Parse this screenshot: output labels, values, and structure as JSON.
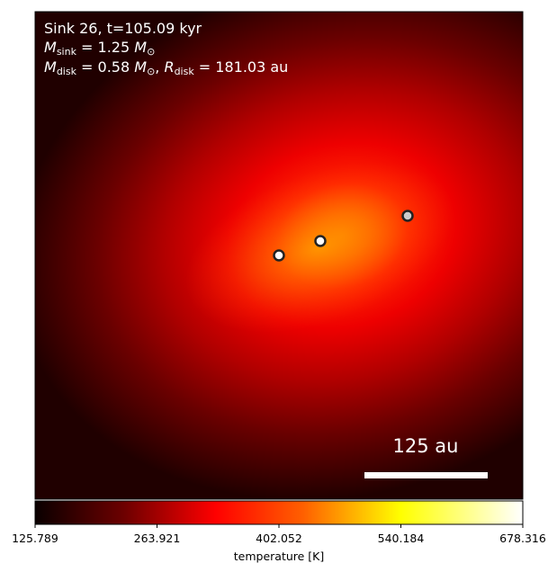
{
  "figure": {
    "info_lines": [
      {
        "id": "line1",
        "text": "Sink 26, t=105.09 kyr"
      },
      {
        "id": "line2",
        "text": "M_sink = 1.25 M_⊙"
      },
      {
        "id": "line3",
        "text": "M_disk = 0.58 M_⊙, R_disk = 181.03 au"
      }
    ],
    "scale_bar_label": "125 au",
    "colorbar": {
      "label": "temperature [K]",
      "ticks": [
        "125.789",
        "263.921",
        "402.052",
        "540.184",
        "678.316"
      ],
      "min": 125.789,
      "max": 678.316,
      "colormap": "hot"
    }
  },
  "chart_data": {
    "type": "heatmap",
    "title": "Sink 26, t=105.09 kyr",
    "annotations": [
      "M_sink = 1.25 M_⊙",
      "M_disk = 0.58 M_⊙, R_disk = 181.03 au",
      "125 au"
    ],
    "colorbar_label": "temperature [K]",
    "colorbar_ticks": [
      125.789,
      263.921,
      402.052,
      540.184,
      678.316
    ],
    "value_range": [
      125.789,
      678.316
    ],
    "sinks_count": 3,
    "axes": "off",
    "colormap": "hot"
  }
}
